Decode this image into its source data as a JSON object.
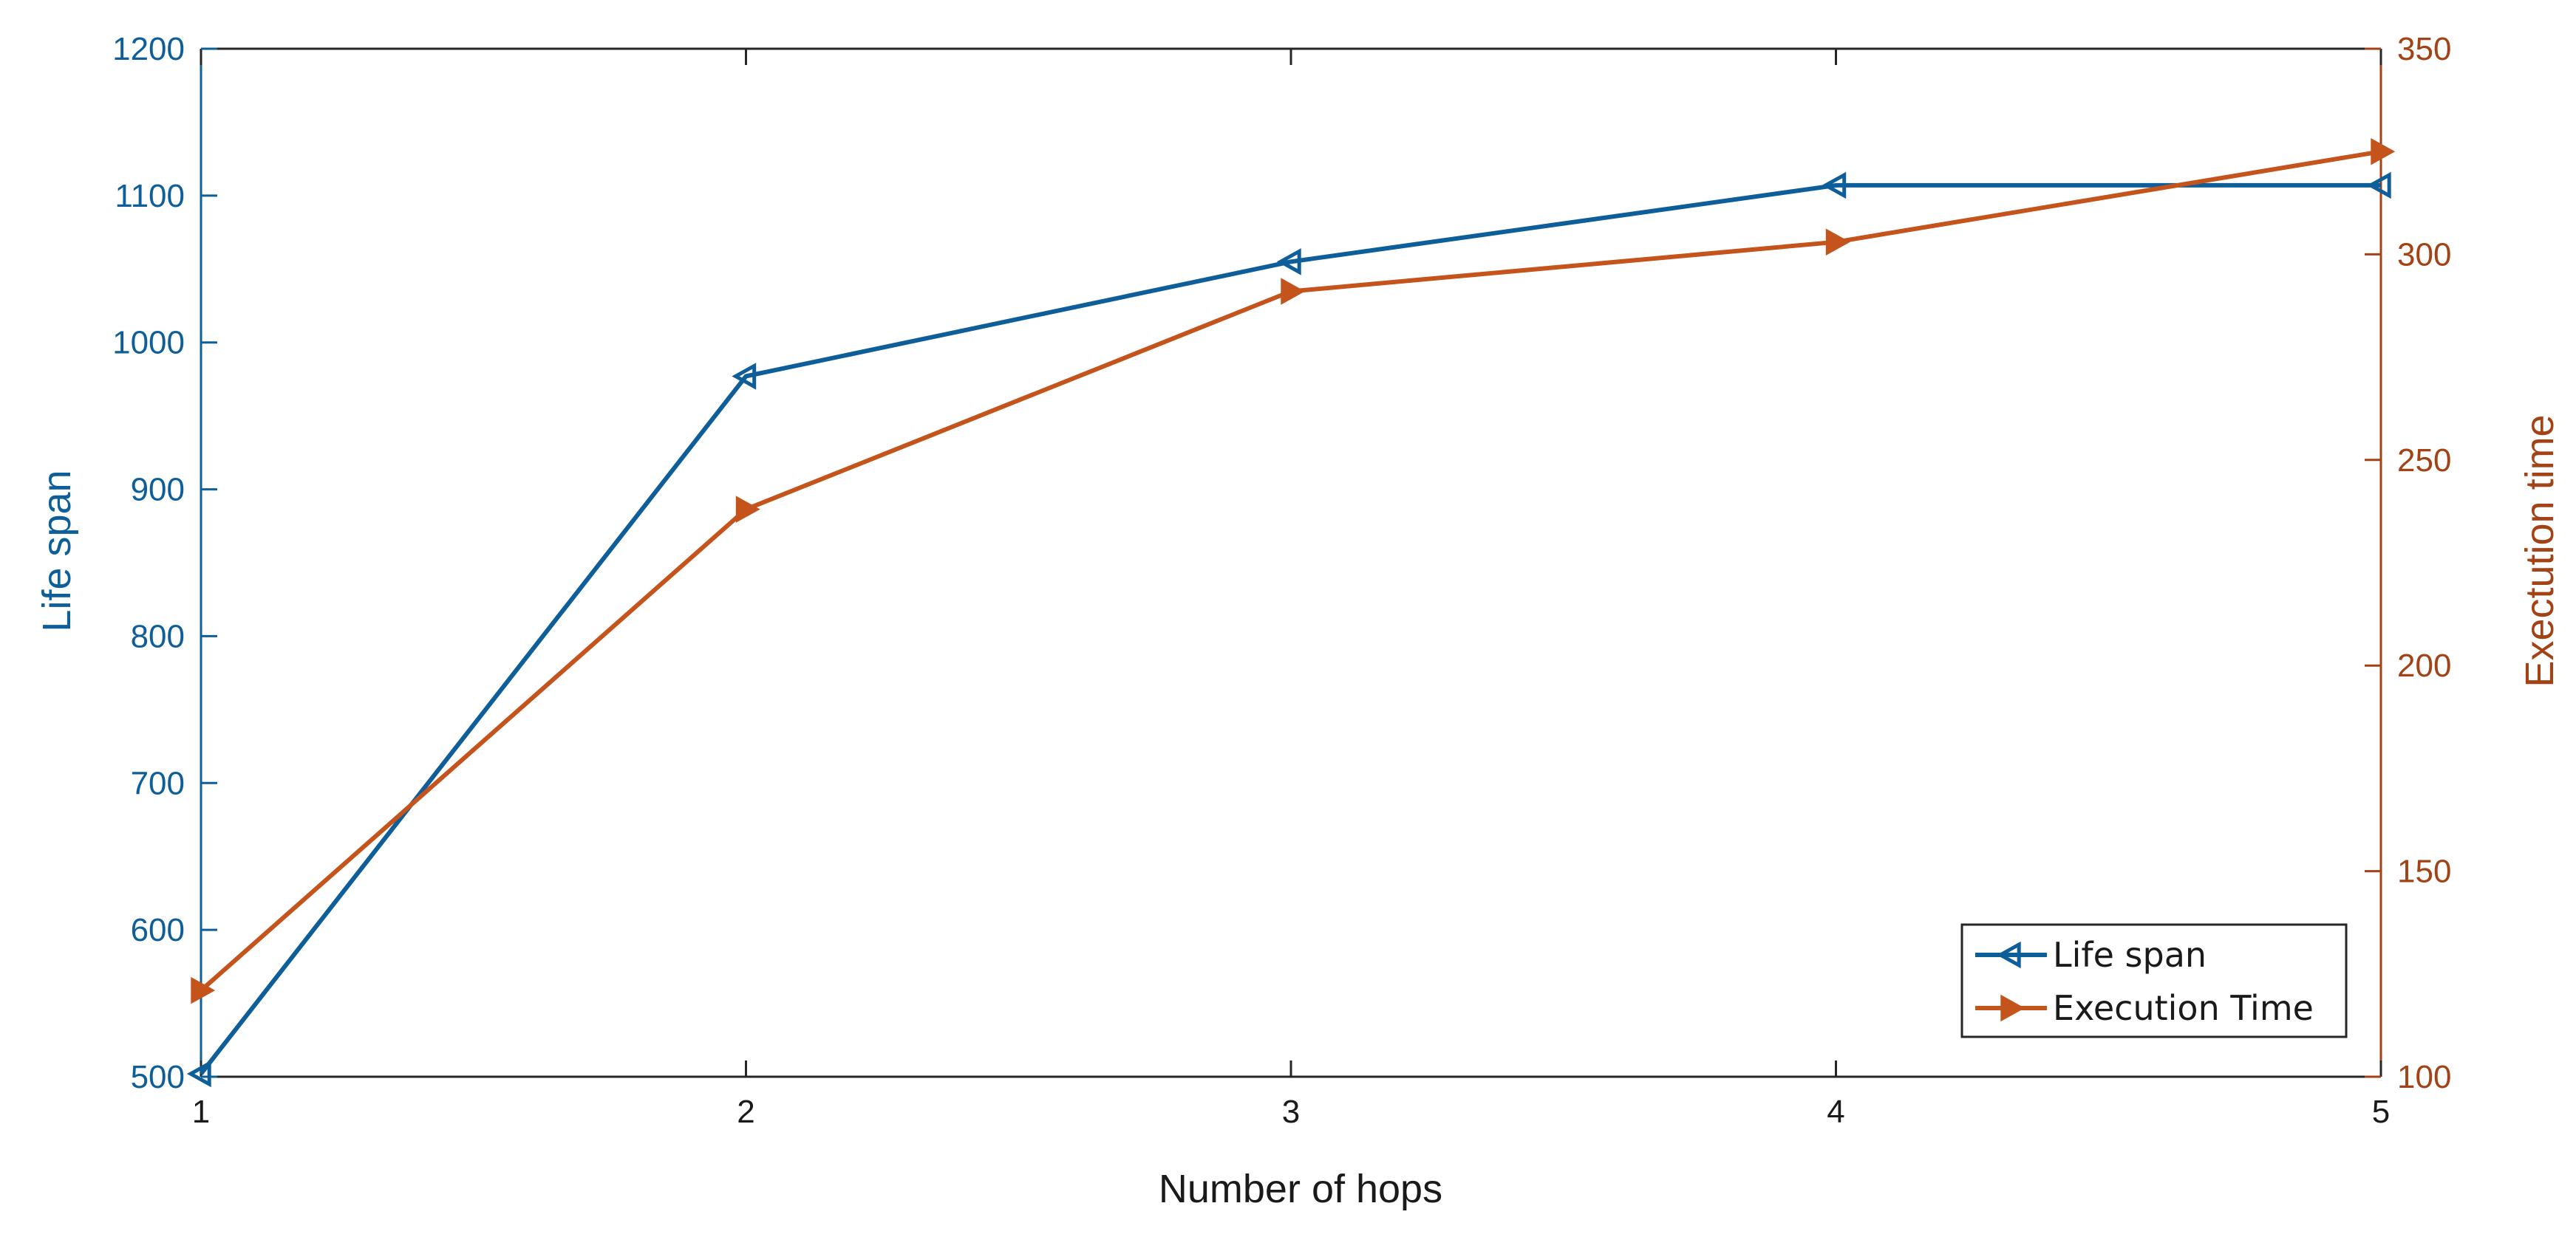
{
  "chart_data": {
    "type": "line",
    "xlabel": "Number of hops",
    "x": [
      1,
      2,
      3,
      4,
      5
    ],
    "xlim": [
      1,
      5
    ],
    "x_ticks": [
      "1",
      "2",
      "3",
      "4",
      "5"
    ],
    "y_left": {
      "label": "Life span",
      "lim": [
        500,
        1200
      ],
      "ticks": [
        "500",
        "600",
        "700",
        "800",
        "900",
        "1000",
        "1100",
        "1200"
      ],
      "color": "#0E5F99"
    },
    "y_right": {
      "label": "Exectution time",
      "lim": [
        100,
        350
      ],
      "ticks": [
        "100",
        "150",
        "200",
        "250",
        "300",
        "350"
      ],
      "color": "#A34214"
    },
    "series": [
      {
        "name": "Life span",
        "axis": "left",
        "values": [
          502,
          977,
          1055,
          1107,
          1107
        ],
        "color": "#0E5F99",
        "marker": "triangle-left"
      },
      {
        "name": "Execution Time",
        "axis": "right",
        "values": [
          121,
          238,
          291,
          303,
          325
        ],
        "color": "#C4531C",
        "marker": "triangle-right"
      }
    ],
    "grid": false,
    "legend_position": "bottom-right"
  }
}
